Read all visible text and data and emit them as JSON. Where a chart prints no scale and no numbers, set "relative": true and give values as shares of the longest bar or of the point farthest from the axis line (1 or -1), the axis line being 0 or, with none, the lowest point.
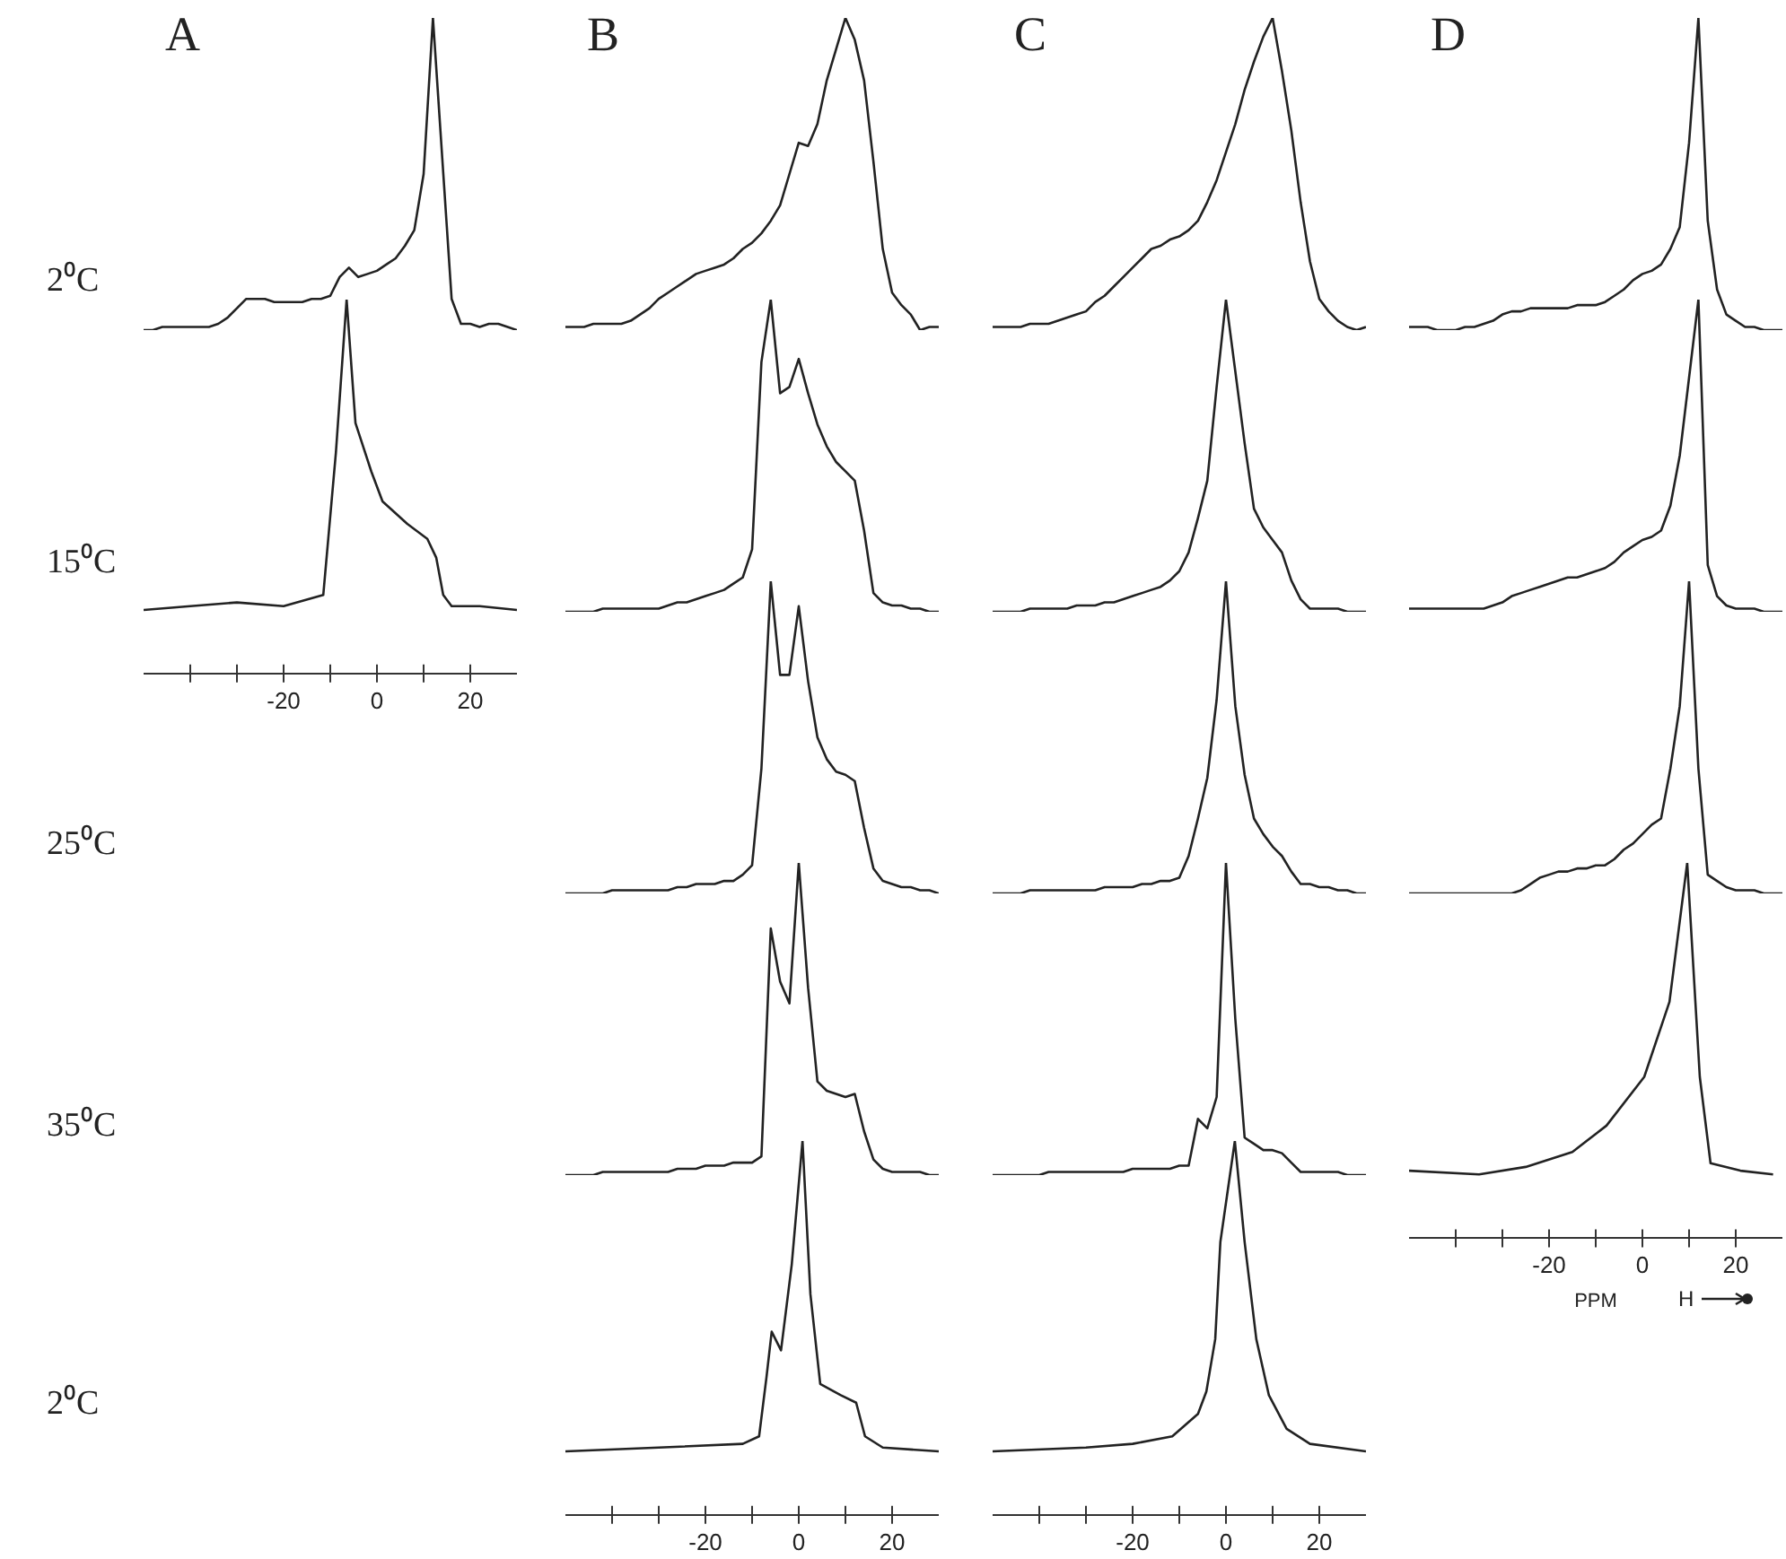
{
  "chart_data": [
    {
      "type": "line",
      "title": "A",
      "ylabel": "2⁰C",
      "relative": true,
      "color": "#222222",
      "tick_labels": false,
      "categories": [
        null,
        null,
        null,
        null,
        null,
        null,
        null,
        null,
        null,
        null,
        null,
        null,
        null,
        null,
        null,
        null,
        null,
        null,
        null,
        null,
        null,
        null,
        null,
        null,
        null,
        null,
        null,
        null,
        null,
        null,
        null,
        null,
        null,
        null,
        null,
        null,
        null,
        null,
        null,
        null,
        null
      ],
      "values": [
        0,
        0,
        0.01,
        0.01,
        0.01,
        0.01,
        0.01,
        0.01,
        0.02,
        0.04,
        0.07,
        0.1,
        0.1,
        0.1,
        0.09,
        0.09,
        0.09,
        0.09,
        0.1,
        0.1,
        0.11,
        0.17,
        0.2,
        0.17,
        0.18,
        0.19,
        0.21,
        0.23,
        0.27,
        0.32,
        0.5,
        1,
        0.55,
        0.1,
        0.02,
        0.02,
        0.01,
        0.02,
        0.02,
        0.01,
        0
      ]
    },
    {
      "type": "line",
      "title": "B",
      "relative": true,
      "color": "#222222",
      "tick_labels": false,
      "categories": [
        null,
        null,
        null,
        null,
        null,
        null,
        null,
        null,
        null,
        null,
        null,
        null,
        null,
        null,
        null,
        null,
        null,
        null,
        null,
        null,
        null,
        null,
        null,
        null,
        null,
        null,
        null,
        null,
        null,
        null,
        null,
        null,
        null,
        null,
        null,
        null,
        null,
        null,
        null,
        null,
        null
      ],
      "values": [
        0.01,
        0.01,
        0.01,
        0.02,
        0.02,
        0.02,
        0.02,
        0.03,
        0.05,
        0.07,
        0.1,
        0.12,
        0.14,
        0.16,
        0.18,
        0.19,
        0.2,
        0.21,
        0.23,
        0.26,
        0.28,
        0.31,
        0.35,
        0.4,
        0.5,
        0.6,
        0.59,
        0.66,
        0.8,
        0.9,
        1,
        0.93,
        0.8,
        0.54,
        0.26,
        0.12,
        0.08,
        0.05,
        0,
        0.01,
        0.01
      ]
    },
    {
      "type": "line",
      "title": "C",
      "relative": true,
      "color": "#222222",
      "tick_labels": false,
      "categories": [
        null,
        null,
        null,
        null,
        null,
        null,
        null,
        null,
        null,
        null,
        null,
        null,
        null,
        null,
        null,
        null,
        null,
        null,
        null,
        null,
        null,
        null,
        null,
        null,
        null,
        null,
        null,
        null,
        null,
        null,
        null,
        null,
        null,
        null,
        null,
        null,
        null,
        null,
        null,
        null,
        null
      ],
      "values": [
        0.01,
        0.01,
        0.01,
        0.01,
        0.02,
        0.02,
        0.02,
        0.03,
        0.04,
        0.05,
        0.06,
        0.09,
        0.11,
        0.14,
        0.17,
        0.2,
        0.23,
        0.26,
        0.27,
        0.29,
        0.3,
        0.32,
        0.35,
        0.41,
        0.48,
        0.57,
        0.66,
        0.77,
        0.86,
        0.94,
        1,
        0.83,
        0.64,
        0.41,
        0.22,
        0.1,
        0.06,
        0.03,
        0.01,
        0,
        0.01
      ]
    },
    {
      "type": "line",
      "title": "D",
      "relative": true,
      "color": "#222222",
      "tick_labels": false,
      "categories": [
        null,
        null,
        null,
        null,
        null,
        null,
        null,
        null,
        null,
        null,
        null,
        null,
        null,
        null,
        null,
        null,
        null,
        null,
        null,
        null,
        null,
        null,
        null,
        null,
        null,
        null,
        null,
        null,
        null,
        null,
        null,
        null,
        null,
        null,
        null,
        null,
        null,
        null,
        null,
        null,
        null
      ],
      "values": [
        0.01,
        0.01,
        0.01,
        0,
        0,
        0,
        0.01,
        0.01,
        0.02,
        0.03,
        0.05,
        0.06,
        0.06,
        0.07,
        0.07,
        0.07,
        0.07,
        0.07,
        0.08,
        0.08,
        0.08,
        0.09,
        0.11,
        0.13,
        0.16,
        0.18,
        0.19,
        0.21,
        0.26,
        0.33,
        0.6,
        1,
        0.35,
        0.13,
        0.05,
        0.03,
        0.01,
        0.01,
        0,
        0,
        0
      ]
    },
    {
      "type": "line",
      "ylabel": "15⁰C",
      "relative": true,
      "color": "#222222",
      "tick_labels": "x",
      "xlim": [
        -50,
        30
      ],
      "xticks": [
        {
          "value": -40,
          "label": null
        },
        {
          "value": -30,
          "label": null
        },
        -20,
        {
          "value": -10,
          "label": null
        },
        0,
        {
          "value": 10,
          "label": null
        },
        20
      ],
      "x": [
        -50,
        -40,
        -30,
        -20,
        -11.5,
        -8.8,
        -6.5,
        -4.6,
        -1.2,
        1.2,
        6.5,
        10.8,
        12.7,
        14.2,
        16,
        22,
        30
      ],
      "values": [
        0.17,
        0.18,
        0.19,
        0.18,
        0.21,
        0.59,
        1,
        0.67,
        0.54,
        0.46,
        0.4,
        0.36,
        0.31,
        0.21,
        0.18,
        0.18,
        0.17
      ]
    },
    {
      "type": "line",
      "relative": true,
      "color": "#222222",
      "tick_labels": false,
      "categories": [
        null,
        null,
        null,
        null,
        null,
        null,
        null,
        null,
        null,
        null,
        null,
        null,
        null,
        null,
        null,
        null,
        null,
        null,
        null,
        null,
        null,
        null,
        null,
        null,
        null,
        null,
        null,
        null,
        null,
        null,
        null,
        null,
        null,
        null,
        null,
        null,
        null,
        null,
        null,
        null,
        null
      ],
      "values": [
        0,
        0,
        0,
        0,
        0.01,
        0.01,
        0.01,
        0.01,
        0.01,
        0.01,
        0.01,
        0.02,
        0.03,
        0.03,
        0.04,
        0.05,
        0.06,
        0.07,
        0.09,
        0.11,
        0.2,
        0.8,
        1,
        0.7,
        0.72,
        0.81,
        0.7,
        0.6,
        0.53,
        0.48,
        0.45,
        0.42,
        0.26,
        0.06,
        0.03,
        0.02,
        0.02,
        0.01,
        0.01,
        0,
        0
      ]
    },
    {
      "type": "line",
      "relative": true,
      "color": "#222222",
      "tick_labels": false,
      "categories": [
        null,
        null,
        null,
        null,
        null,
        null,
        null,
        null,
        null,
        null,
        null,
        null,
        null,
        null,
        null,
        null,
        null,
        null,
        null,
        null,
        null,
        null,
        null,
        null,
        null,
        null,
        null,
        null,
        null,
        null,
        null,
        null,
        null,
        null,
        null,
        null,
        null,
        null,
        null,
        null,
        null
      ],
      "values": [
        0,
        0,
        0,
        0,
        0.01,
        0.01,
        0.01,
        0.01,
        0.01,
        0.02,
        0.02,
        0.02,
        0.03,
        0.03,
        0.04,
        0.05,
        0.06,
        0.07,
        0.08,
        0.1,
        0.13,
        0.19,
        0.3,
        0.42,
        0.72,
        1,
        0.77,
        0.54,
        0.33,
        0.27,
        0.23,
        0.19,
        0.1,
        0.04,
        0.01,
        0.01,
        0.01,
        0.01,
        0,
        0,
        0
      ]
    },
    {
      "type": "line",
      "relative": true,
      "color": "#222222",
      "tick_labels": false,
      "categories": [
        null,
        null,
        null,
        null,
        null,
        null,
        null,
        null,
        null,
        null,
        null,
        null,
        null,
        null,
        null,
        null,
        null,
        null,
        null,
        null,
        null,
        null,
        null,
        null,
        null,
        null,
        null,
        null,
        null,
        null,
        null,
        null,
        null,
        null,
        null,
        null,
        null,
        null,
        null,
        null,
        null
      ],
      "values": [
        0.01,
        0.01,
        0.01,
        0.01,
        0.01,
        0.01,
        0.01,
        0.01,
        0.01,
        0.02,
        0.03,
        0.05,
        0.06,
        0.07,
        0.08,
        0.09,
        0.1,
        0.11,
        0.11,
        0.12,
        0.13,
        0.14,
        0.16,
        0.19,
        0.21,
        0.23,
        0.24,
        0.26,
        0.34,
        0.5,
        0.75,
        1,
        0.15,
        0.05,
        0.02,
        0.01,
        0.01,
        0.01,
        0,
        0,
        0
      ]
    },
    {
      "type": "line",
      "ylabel": "25⁰C",
      "relative": true,
      "color": "#222222",
      "tick_labels": false,
      "categories": [
        null,
        null,
        null,
        null,
        null,
        null,
        null,
        null,
        null,
        null,
        null,
        null,
        null,
        null,
        null,
        null,
        null,
        null,
        null,
        null,
        null,
        null,
        null,
        null,
        null,
        null,
        null,
        null,
        null,
        null,
        null,
        null,
        null,
        null,
        null,
        null,
        null,
        null,
        null,
        null,
        null
      ],
      "values": [
        0,
        0,
        0,
        0,
        0,
        0.01,
        0.01,
        0.01,
        0.01,
        0.01,
        0.01,
        0.01,
        0.02,
        0.02,
        0.03,
        0.03,
        0.03,
        0.04,
        0.04,
        0.06,
        0.09,
        0.4,
        1,
        0.7,
        0.7,
        0.92,
        0.68,
        0.5,
        0.43,
        0.39,
        0.38,
        0.36,
        0.21,
        0.08,
        0.04,
        0.03,
        0.02,
        0.02,
        0.01,
        0.01,
        0
      ]
    },
    {
      "type": "line",
      "relative": true,
      "color": "#222222",
      "tick_labels": false,
      "categories": [
        null,
        null,
        null,
        null,
        null,
        null,
        null,
        null,
        null,
        null,
        null,
        null,
        null,
        null,
        null,
        null,
        null,
        null,
        null,
        null,
        null,
        null,
        null,
        null,
        null,
        null,
        null,
        null,
        null,
        null,
        null,
        null,
        null,
        null,
        null,
        null,
        null,
        null,
        null,
        null,
        null
      ],
      "values": [
        0,
        0,
        0,
        0,
        0.01,
        0.01,
        0.01,
        0.01,
        0.01,
        0.01,
        0.01,
        0.01,
        0.02,
        0.02,
        0.02,
        0.02,
        0.03,
        0.03,
        0.04,
        0.04,
        0.05,
        0.12,
        0.24,
        0.37,
        0.62,
        1,
        0.6,
        0.38,
        0.24,
        0.19,
        0.15,
        0.12,
        0.07,
        0.03,
        0.03,
        0.02,
        0.02,
        0.01,
        0.01,
        0,
        0
      ]
    },
    {
      "type": "line",
      "relative": true,
      "color": "#222222",
      "tick_labels": false,
      "categories": [
        null,
        null,
        null,
        null,
        null,
        null,
        null,
        null,
        null,
        null,
        null,
        null,
        null,
        null,
        null,
        null,
        null,
        null,
        null,
        null,
        null,
        null,
        null,
        null,
        null,
        null,
        null,
        null,
        null,
        null,
        null,
        null,
        null,
        null,
        null,
        null,
        null,
        null,
        null,
        null,
        null
      ],
      "values": [
        0,
        0,
        0,
        0,
        0,
        0,
        0,
        0,
        0,
        0,
        0,
        0,
        0.01,
        0.03,
        0.05,
        0.06,
        0.07,
        0.07,
        0.08,
        0.08,
        0.09,
        0.09,
        0.11,
        0.14,
        0.16,
        0.19,
        0.22,
        0.24,
        0.4,
        0.6,
        1,
        0.4,
        0.06,
        0.04,
        0.02,
        0.01,
        0.01,
        0.01,
        0,
        0,
        0
      ]
    },
    {
      "type": "line",
      "ylabel": "35⁰C",
      "relative": true,
      "color": "#222222",
      "tick_labels": false,
      "categories": [
        null,
        null,
        null,
        null,
        null,
        null,
        null,
        null,
        null,
        null,
        null,
        null,
        null,
        null,
        null,
        null,
        null,
        null,
        null,
        null,
        null,
        null,
        null,
        null,
        null,
        null,
        null,
        null,
        null,
        null,
        null,
        null,
        null,
        null,
        null,
        null,
        null,
        null,
        null,
        null,
        null
      ],
      "values": [
        0,
        0,
        0,
        0,
        0.01,
        0.01,
        0.01,
        0.01,
        0.01,
        0.01,
        0.01,
        0.01,
        0.02,
        0.02,
        0.02,
        0.03,
        0.03,
        0.03,
        0.04,
        0.04,
        0.04,
        0.06,
        0.79,
        0.62,
        0.55,
        1,
        0.6,
        0.3,
        0.27,
        0.26,
        0.25,
        0.26,
        0.14,
        0.05,
        0.02,
        0.01,
        0.01,
        0.01,
        0.01,
        0,
        0
      ]
    },
    {
      "type": "line",
      "relative": true,
      "color": "#222222",
      "tick_labels": false,
      "categories": [
        null,
        null,
        null,
        null,
        null,
        null,
        null,
        null,
        null,
        null,
        null,
        null,
        null,
        null,
        null,
        null,
        null,
        null,
        null,
        null,
        null,
        null,
        null,
        null,
        null,
        null,
        null,
        null,
        null,
        null,
        null,
        null,
        null,
        null,
        null,
        null,
        null,
        null,
        null,
        null,
        null
      ],
      "values": [
        0,
        0,
        0,
        0,
        0,
        0,
        0.01,
        0.01,
        0.01,
        0.01,
        0.01,
        0.01,
        0.01,
        0.01,
        0.01,
        0.02,
        0.02,
        0.02,
        0.02,
        0.02,
        0.03,
        0.03,
        0.18,
        0.15,
        0.25,
        1,
        0.5,
        0.12,
        0.1,
        0.08,
        0.08,
        0.07,
        0.04,
        0.01,
        0.01,
        0.01,
        0.01,
        0.01,
        0,
        0,
        0
      ]
    },
    {
      "type": "line",
      "xlabel": "PPM",
      "annotations": [
        "H"
      ],
      "relative": true,
      "color": "#222222",
      "tick_labels": "x",
      "xlim": [
        -50,
        30
      ],
      "xticks": [
        {
          "value": -40,
          "label": null
        },
        {
          "value": -30,
          "label": null
        },
        -20,
        {
          "value": -10,
          "label": null
        },
        0,
        {
          "value": 10,
          "label": null
        },
        20
      ],
      "x": [
        -50,
        -35,
        -25,
        -15,
        -7.7,
        0.4,
        5.8,
        9.6,
        12.3,
        14.6,
        21,
        28
      ],
      "values": [
        0.18,
        0.17,
        0.19,
        0.23,
        0.3,
        0.43,
        0.63,
        1,
        0.43,
        0.2,
        0.18,
        0.17
      ]
    },
    {
      "type": "line",
      "ylabel": "2⁰C",
      "relative": true,
      "color": "#222222",
      "tick_labels": "x",
      "xlim": [
        -50,
        30
      ],
      "xticks": [
        {
          "value": -40,
          "label": null
        },
        {
          "value": -30,
          "label": null
        },
        -20,
        {
          "value": -10,
          "label": null
        },
        0,
        {
          "value": 10,
          "label": null
        },
        20
      ],
      "x": [
        -50,
        -30,
        -12,
        -8.5,
        -6.9,
        -5.8,
        -3.8,
        -1.5,
        0.8,
        2.5,
        4.6,
        9,
        12.3,
        14.2,
        18,
        30
      ],
      "values": [
        0.17,
        0.18,
        0.19,
        0.21,
        0.37,
        0.49,
        0.44,
        0.67,
        1,
        0.59,
        0.35,
        0.32,
        0.3,
        0.21,
        0.18,
        0.17
      ]
    },
    {
      "type": "line",
      "relative": true,
      "color": "#222222",
      "tick_labels": "x",
      "xlim": [
        -50,
        30
      ],
      "xticks": [
        {
          "value": -40,
          "label": null
        },
        {
          "value": -30,
          "label": null
        },
        -20,
        {
          "value": -10,
          "label": null
        },
        0,
        {
          "value": 10,
          "label": null
        },
        20
      ],
      "x": [
        -50,
        -30,
        -20,
        -11.5,
        -6,
        -4.2,
        -2.3,
        -1.2,
        1.9,
        4,
        6.5,
        9.2,
        13,
        18,
        30
      ],
      "values": [
        0.17,
        0.18,
        0.19,
        0.21,
        0.27,
        0.33,
        0.47,
        0.73,
        1,
        0.73,
        0.47,
        0.32,
        0.23,
        0.19,
        0.17
      ]
    }
  ]
}
